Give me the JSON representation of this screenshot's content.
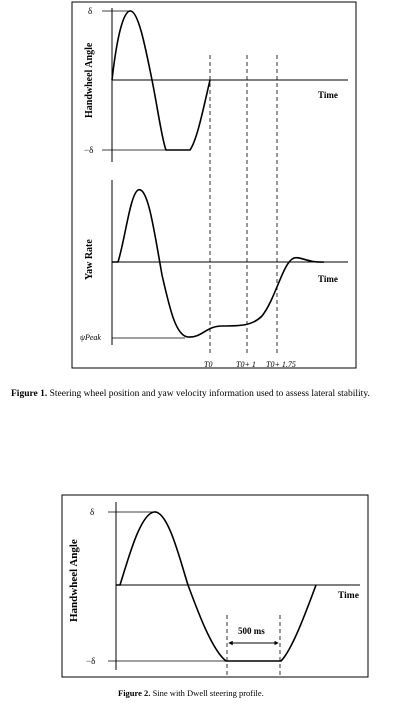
{
  "figure1": {
    "panel_top": {
      "y_axis_label": "Handwheel Angle",
      "tick_top": "δ",
      "tick_bottom": "−δ",
      "x_axis_label": "Time"
    },
    "panel_bottom": {
      "y_axis_label": "Yaw Rate",
      "tick_peak": "ψ̇Peak",
      "x_axis_label": "Time",
      "markers": [
        "T0",
        "T0+ 1",
        "T0+ 1.75"
      ]
    },
    "caption_label": "Figure 1.",
    "caption_text": "Steering wheel position and yaw velocity information used to assess lateral stability."
  },
  "figure2": {
    "y_axis_label": "Handwheel Angle",
    "tick_top": "δ",
    "tick_bottom": "−δ",
    "x_axis_label": "Time",
    "dwell_label": "500 ms",
    "caption_label": "Figure 2.",
    "caption_text": "Sine with Dwell steering profile."
  }
}
